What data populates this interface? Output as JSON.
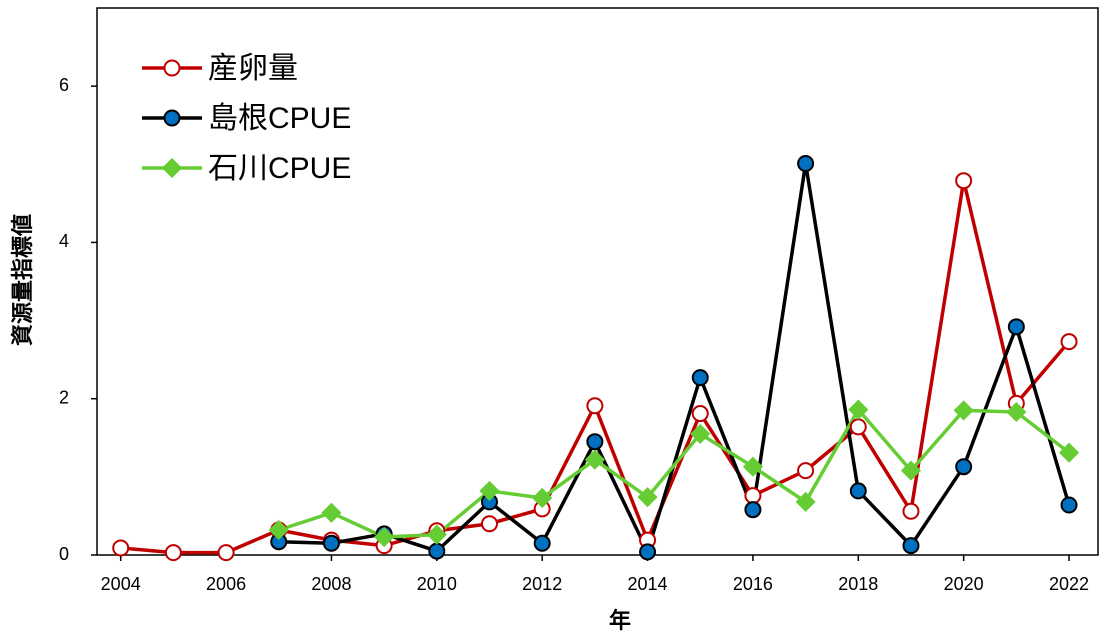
{
  "chart_data": {
    "type": "line",
    "x_label": "年",
    "y_label": "資源量指標値",
    "x": [
      2004,
      2005,
      2006,
      2007,
      2008,
      2009,
      2010,
      2011,
      2012,
      2013,
      2014,
      2015,
      2016,
      2017,
      2018,
      2019,
      2020,
      2021,
      2022
    ],
    "series": [
      {
        "name": "産卵量",
        "color": "#c00000",
        "marker": "circle",
        "marker_fill": "#ffffff",
        "values": [
          0.09,
          0.03,
          0.03,
          0.32,
          0.19,
          0.12,
          0.31,
          0.4,
          0.59,
          1.91,
          0.19,
          1.81,
          0.76,
          1.08,
          1.64,
          0.56,
          4.79,
          1.94,
          2.73
        ]
      },
      {
        "name": "島根CPUE",
        "color": "#000000",
        "marker": "circle",
        "marker_fill": "#0070c0",
        "values": [
          null,
          null,
          null,
          0.17,
          0.15,
          0.27,
          0.05,
          0.68,
          0.15,
          1.45,
          0.04,
          2.27,
          0.58,
          5.01,
          0.82,
          0.12,
          1.13,
          2.92,
          0.64
        ]
      },
      {
        "name": "石川CPUE",
        "color": "#66cc33",
        "marker": "diamond",
        "marker_fill": "#66cc33",
        "values": [
          null,
          null,
          null,
          0.32,
          0.54,
          0.23,
          0.26,
          0.82,
          0.73,
          1.22,
          0.74,
          1.55,
          1.13,
          0.68,
          1.86,
          1.08,
          1.85,
          1.83,
          1.31
        ]
      }
    ],
    "xlim": [
      2003.55,
      2022.55
    ],
    "xticks": [
      2004,
      2006,
      2008,
      2010,
      2012,
      2014,
      2016,
      2018,
      2020,
      2022
    ],
    "ylim": [
      0,
      7
    ],
    "yticks": [
      0,
      2,
      4,
      6
    ],
    "grid": false,
    "legend": "upper left"
  }
}
